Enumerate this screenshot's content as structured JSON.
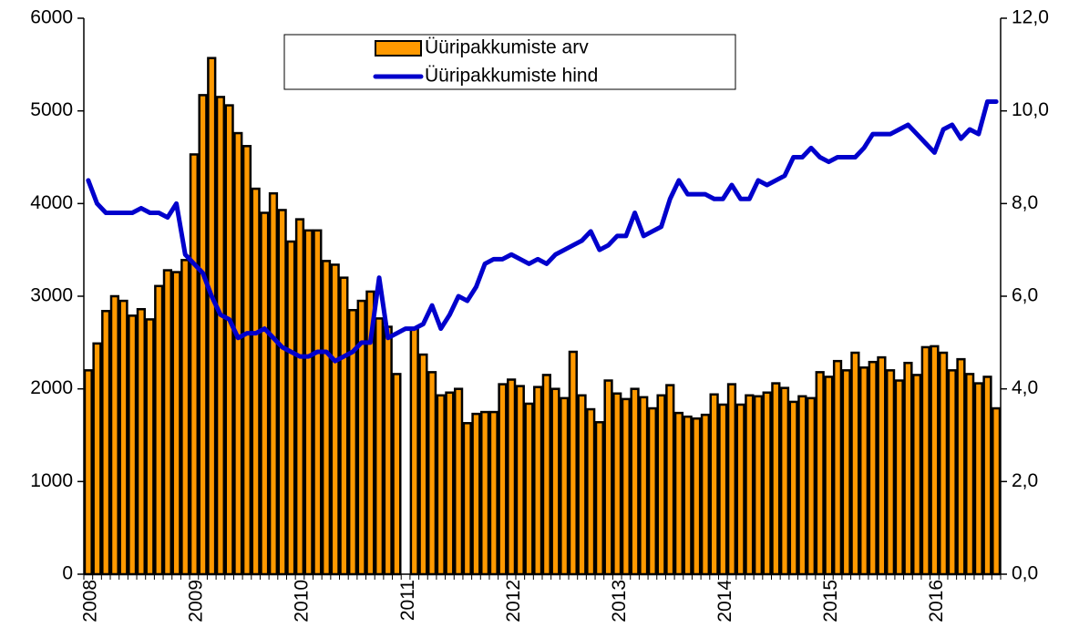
{
  "chart_data": {
    "type": "bar_line",
    "categories": [
      "2008",
      null,
      null,
      null,
      null,
      null,
      null,
      null,
      null,
      null,
      null,
      null,
      "2009",
      null,
      null,
      null,
      null,
      null,
      null,
      null,
      null,
      null,
      null,
      null,
      "2010",
      null,
      null,
      null,
      null,
      null,
      null,
      null,
      null,
      null,
      null,
      null,
      "2011",
      null,
      null,
      null,
      null,
      null,
      null,
      null,
      null,
      null,
      null,
      null,
      "2012",
      null,
      null,
      null,
      null,
      null,
      null,
      null,
      null,
      null,
      null,
      null,
      "2013",
      null,
      null,
      null,
      null,
      null,
      null,
      null,
      null,
      null,
      null,
      null,
      "2014",
      null,
      null,
      null,
      null,
      null,
      null,
      null,
      null,
      null,
      null,
      null,
      "2015",
      null,
      null,
      null,
      null,
      null,
      null,
      null,
      null,
      null,
      null,
      null,
      "2016",
      null,
      null,
      null,
      null,
      null,
      null,
      null
    ],
    "series": [
      {
        "name": "Üüripakkumiste arv",
        "type": "bar",
        "color": "#ff9900",
        "values": [
          2200,
          2490,
          2840,
          3000,
          2950,
          2790,
          2860,
          2750,
          3110,
          3280,
          3260,
          3390,
          4530,
          5170,
          5570,
          5150,
          5060,
          4760,
          4620,
          4160,
          3900,
          4110,
          3930,
          3590,
          3830,
          3710,
          3710,
          3380,
          3340,
          3200,
          2850,
          2950,
          3050,
          2760,
          2670,
          2160,
          null,
          2650,
          2370,
          2180,
          1930,
          1960,
          2000,
          1630,
          1730,
          1750,
          1750,
          2050,
          2100,
          2030,
          1840,
          2020,
          2150,
          2000,
          1900,
          2400,
          1930,
          1780,
          1640,
          2090,
          1950,
          1890,
          2000,
          1910,
          1790,
          1930,
          2040,
          1740,
          1700,
          1680,
          1720,
          1940,
          1830,
          2050,
          1830,
          1930,
          1920,
          1960,
          2060,
          2010,
          1860,
          1920,
          1900,
          2180,
          2130,
          2300,
          2200,
          2390,
          2230,
          2290,
          2340,
          2200,
          2090,
          2280,
          2150,
          2450,
          2460,
          2390,
          2200,
          2320,
          2160,
          2060,
          2130,
          1790
        ]
      },
      {
        "name": "Üüripakkumiste hind",
        "type": "line",
        "axis": "y2",
        "color": "#0000cc",
        "values": [
          8.5,
          8.0,
          7.8,
          7.8,
          7.8,
          7.8,
          7.9,
          7.8,
          7.8,
          7.7,
          8.0,
          6.9,
          6.7,
          6.5,
          6.0,
          5.6,
          5.5,
          5.1,
          5.2,
          5.2,
          5.3,
          5.1,
          4.9,
          4.8,
          4.7,
          4.7,
          4.8,
          4.8,
          4.6,
          4.7,
          4.8,
          5.0,
          5.0,
          6.4,
          5.1,
          5.2,
          5.3,
          5.3,
          5.4,
          5.8,
          5.3,
          5.6,
          6.0,
          5.9,
          6.2,
          6.7,
          6.8,
          6.8,
          6.9,
          6.8,
          6.7,
          6.8,
          6.7,
          6.9,
          7.0,
          7.1,
          7.2,
          7.4,
          7.0,
          7.1,
          7.3,
          7.3,
          7.8,
          7.3,
          7.4,
          7.5,
          8.1,
          8.5,
          8.2,
          8.2,
          8.2,
          8.1,
          8.1,
          8.4,
          8.1,
          8.1,
          8.5,
          8.4,
          8.5,
          8.6,
          9.0,
          9.0,
          9.2,
          9.0,
          8.9,
          9.0,
          9.0,
          9.0,
          9.2,
          9.5,
          9.5,
          9.5,
          9.6,
          9.7,
          9.5,
          9.3,
          9.1,
          9.6,
          9.7,
          9.4,
          9.6,
          9.5,
          10.2,
          10.2
        ]
      }
    ],
    "ylim": [
      0,
      6000
    ],
    "yticks": [
      0,
      1000,
      2000,
      3000,
      4000,
      5000,
      6000
    ],
    "y2lim": [
      0,
      12
    ],
    "y2ticks": [
      {
        "value": 0,
        "label": "0,0"
      },
      {
        "value": 2,
        "label": "2,0"
      },
      {
        "value": 4,
        "label": "4,0"
      },
      {
        "value": 6,
        "label": "6,0"
      },
      {
        "value": 8,
        "label": "8,0"
      },
      {
        "value": 10,
        "label": "10,0"
      },
      {
        "value": 12,
        "label": "12,0"
      }
    ]
  }
}
